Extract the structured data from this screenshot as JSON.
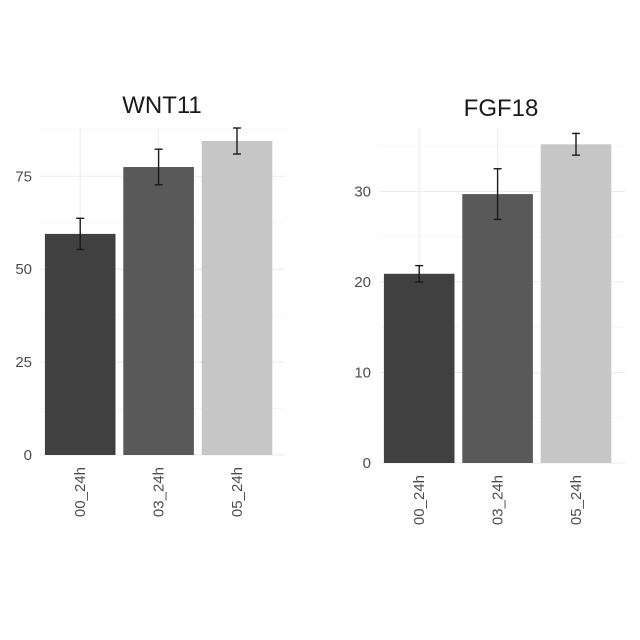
{
  "chart_data": [
    {
      "type": "bar",
      "title": "WNT11",
      "xlabel": "",
      "ylabel": "",
      "categories": [
        "00_24h",
        "03_24h",
        "05_24h"
      ],
      "values": [
        59.5,
        77.5,
        84.5
      ],
      "error": [
        4.2,
        4.8,
        3.5
      ],
      "colors": [
        "#404040",
        "#595959",
        "#c6c6c6"
      ],
      "ylim": [
        0,
        88
      ],
      "yticks": [
        0,
        25,
        50,
        75
      ],
      "ytick_labels": [
        "0",
        "25",
        "50",
        "75"
      ],
      "grid": true,
      "legend": "none"
    },
    {
      "type": "bar",
      "title": "FGF18",
      "xlabel": "",
      "ylabel": "",
      "categories": [
        "00_24h",
        "03_24h",
        "05_24h"
      ],
      "values": [
        20.9,
        29.7,
        35.2
      ],
      "error": [
        0.9,
        2.8,
        1.2
      ],
      "colors": [
        "#404040",
        "#595959",
        "#c6c6c6"
      ],
      "ylim": [
        0,
        37
      ],
      "yticks": [
        0,
        10,
        20,
        30
      ],
      "ytick_labels": [
        "0",
        "10",
        "20",
        "30"
      ],
      "grid": true,
      "legend": "none"
    }
  ]
}
